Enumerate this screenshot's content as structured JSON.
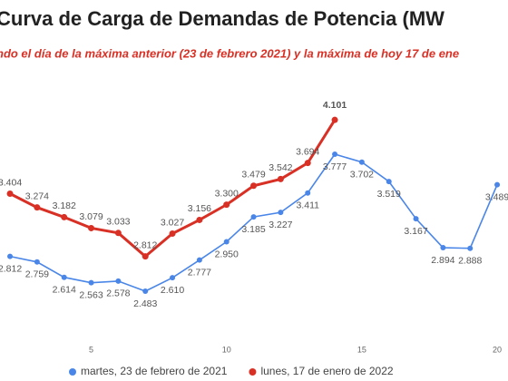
{
  "chart_data": {
    "type": "line",
    "title": "Curva de Carga de Demandas de Potencia (MW",
    "subtitle": "ndo el día de la máxima anterior (23 de febrero 2021) y la máxima de hoy 17 de ene",
    "x": [
      2,
      3,
      4,
      5,
      6,
      7,
      8,
      9,
      10,
      11,
      12,
      13,
      14,
      15,
      16,
      17,
      18,
      19,
      20
    ],
    "series": [
      {
        "name": "martes, 23 de febrero de 2021",
        "color": "#4a86e8",
        "values": [
          2812,
          2759,
          2614,
          2563,
          2578,
          2483,
          2610,
          2777,
          2950,
          3185,
          3227,
          3411,
          3777,
          3702,
          3519,
          3167,
          2894,
          2888,
          3489
        ],
        "value_labels": [
          "2.812",
          "2.759",
          "2.614",
          "2.563",
          "2.578",
          "2.483",
          "2.610",
          "2.777",
          "2.950",
          "3.185",
          "3.227",
          "3.411",
          "3.777",
          "3.702",
          "3.519",
          "3.167",
          "2.894",
          "2.888",
          "3.489"
        ]
      },
      {
        "name": "lunes, 17 de enero de 2022",
        "color": "#d93025",
        "values": [
          3404,
          3274,
          3182,
          3079,
          3033,
          2812,
          3027,
          3156,
          3300,
          3479,
          3542,
          3694,
          4101,
          null,
          null,
          null,
          null,
          null,
          null
        ],
        "value_labels": [
          "3.404",
          "3.274",
          "3.182",
          "3.079",
          "3.033",
          "2.812",
          "3.027",
          "3.156",
          "3.300",
          "3.479",
          "3.542",
          "3.694",
          "4.101",
          null,
          null,
          null,
          null,
          null,
          null
        ]
      }
    ],
    "xlim": [
      1.63,
      20.4
    ],
    "xticks": [
      5,
      10,
      15,
      20
    ],
    "ylim": [
      2063,
      4591
    ],
    "legend": "bottom"
  }
}
